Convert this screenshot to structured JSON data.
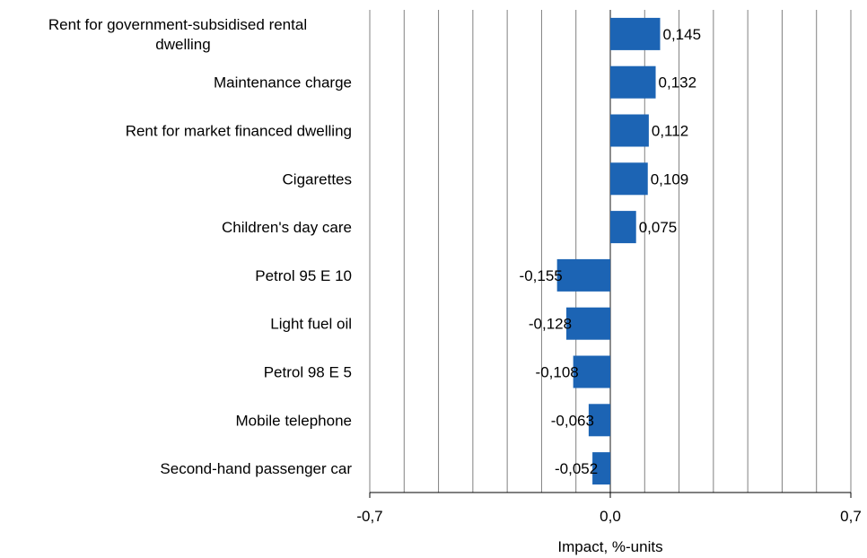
{
  "chart_data": {
    "type": "bar",
    "orientation": "horizontal",
    "categories": [
      "Rent for government-subsidised rental dwelling",
      "Maintenance charge",
      "Rent for market financed dwelling",
      "Cigarettes",
      "Children's day care",
      "Petrol 95 E 10",
      "Light fuel oil",
      "Petrol 98 E 5",
      "Mobile telephone",
      "Second-hand passenger car"
    ],
    "category_lines": [
      [
        "Rent for government-subsidised rental",
        "dwelling"
      ],
      [
        "Maintenance charge"
      ],
      [
        "Rent for market financed dwelling"
      ],
      [
        "Cigarettes"
      ],
      [
        "Children's day care"
      ],
      [
        "Petrol 95 E 10"
      ],
      [
        "Light fuel oil"
      ],
      [
        "Petrol 98 E 5"
      ],
      [
        "Mobile telephone"
      ],
      [
        "Second-hand passenger car"
      ]
    ],
    "values": [
      0.145,
      0.132,
      0.112,
      0.109,
      0.075,
      -0.155,
      -0.128,
      -0.108,
      -0.063,
      -0.052
    ],
    "value_labels": [
      "0,145",
      "0,132",
      "0,112",
      "0,109",
      "0,075",
      "-0,155",
      "-0,128",
      "-0,108",
      "-0,063",
      "-0,052"
    ],
    "xlabel": "Impact, %-units",
    "xlim": [
      -0.7,
      0.7
    ],
    "x_ticks": [
      -0.7,
      0.0,
      0.7
    ],
    "x_tick_labels": [
      "-0,7",
      "0,0",
      "0,7"
    ],
    "grid": true,
    "grid_step": 0.1,
    "bar_color": "#1c64b4",
    "grid_color": "#808080"
  }
}
